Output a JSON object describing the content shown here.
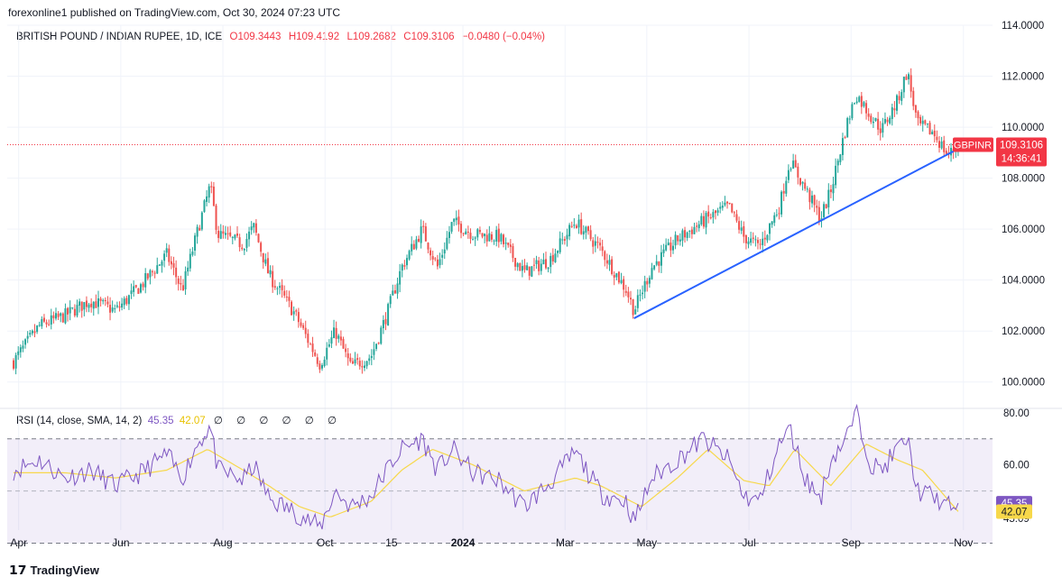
{
  "header": {
    "publisher": "forexonline1 published on TradingView.com, Oct 30, 2024 07:23 UTC"
  },
  "legend": {
    "symbol": "BRITISH POUND / INDIAN RUPEE, 1D, ICE",
    "open": "O109.3443",
    "high": "H109.4192",
    "low": "L109.2682",
    "close": "C109.3106",
    "change": "−0.0480 (−0.04%)"
  },
  "rsi_legend": {
    "label": "RSI (14, close, SMA, 14, 2)",
    "rsi": "45.35",
    "sma": "42.07",
    "icons": "∅ ∅ ∅     ∅ ∅ ∅"
  },
  "price_tag": {
    "symbol": "GBPINR",
    "price": "109.3106",
    "countdown": "14:36:41"
  },
  "rsi_tags": {
    "rsi": "45.35",
    "rsi_prev": "45.09",
    "sma": "42.07"
  },
  "brand": "TradingView",
  "colors": {
    "up": "#26a69a",
    "down": "#ef5350",
    "trendline": "#2962ff",
    "rsi": "#7e57c2",
    "rsi_sma": "#f7d84a",
    "last_price": "#f23645"
  },
  "chart_data": [
    {
      "type": "candlestick",
      "title": "BRITISH POUND / INDIAN RUPEE, 1D, ICE",
      "y_ticks": [
        "114.0000",
        "112.0000",
        "110.0000",
        "108.0000",
        "106.0000",
        "104.0000",
        "102.0000",
        "100.0000"
      ],
      "ylim": [
        99.0,
        114.0
      ],
      "x_ticks": [
        "Apr",
        "Jun",
        "Aug",
        "Oct",
        "15",
        "2024",
        "Mar",
        "May",
        "Jul",
        "Sep",
        "Nov"
      ],
      "anchors": [
        {
          "month": 0.0,
          "close": 100.8
        },
        {
          "month": 0.5,
          "close": 102.2
        },
        {
          "month": 1.0,
          "close": 102.6
        },
        {
          "month": 1.5,
          "close": 103.2
        },
        {
          "month": 2.0,
          "close": 102.8
        },
        {
          "month": 2.5,
          "close": 103.8
        },
        {
          "month": 3.0,
          "close": 105.0
        },
        {
          "month": 3.3,
          "close": 103.6
        },
        {
          "month": 3.6,
          "close": 105.9
        },
        {
          "month": 3.85,
          "close": 107.7
        },
        {
          "month": 4.0,
          "close": 105.8
        },
        {
          "month": 4.5,
          "close": 105.4
        },
        {
          "month": 4.7,
          "close": 106.1
        },
        {
          "month": 5.0,
          "close": 104.2
        },
        {
          "month": 5.5,
          "close": 102.7
        },
        {
          "month": 6.0,
          "close": 100.7
        },
        {
          "month": 6.3,
          "close": 102.0
        },
        {
          "month": 6.6,
          "close": 100.6
        },
        {
          "month": 7.0,
          "close": 101.0
        },
        {
          "month": 7.3,
          "close": 102.6
        },
        {
          "month": 7.6,
          "close": 104.5
        },
        {
          "month": 8.0,
          "close": 106.0
        },
        {
          "month": 8.3,
          "close": 104.5
        },
        {
          "month": 8.6,
          "close": 106.3
        },
        {
          "month": 9.0,
          "close": 105.8
        },
        {
          "month": 9.5,
          "close": 105.7
        },
        {
          "month": 10.0,
          "close": 104.3
        },
        {
          "month": 10.5,
          "close": 104.8
        },
        {
          "month": 11.0,
          "close": 106.3
        },
        {
          "month": 11.5,
          "close": 105.2
        },
        {
          "month": 12.0,
          "close": 103.6
        },
        {
          "month": 12.15,
          "close": 102.8
        },
        {
          "month": 12.5,
          "close": 104.5
        },
        {
          "month": 13.0,
          "close": 105.6
        },
        {
          "month": 13.5,
          "close": 106.3
        },
        {
          "month": 14.0,
          "close": 106.9
        },
        {
          "month": 14.3,
          "close": 105.7
        },
        {
          "month": 14.6,
          "close": 105.3
        },
        {
          "month": 15.0,
          "close": 106.9
        },
        {
          "month": 15.2,
          "close": 108.7
        },
        {
          "month": 15.5,
          "close": 107.6
        },
        {
          "month": 15.8,
          "close": 106.4
        },
        {
          "month": 16.0,
          "close": 107.5
        },
        {
          "month": 16.3,
          "close": 110.0
        },
        {
          "month": 16.5,
          "close": 111.3
        },
        {
          "month": 16.8,
          "close": 110.4
        },
        {
          "month": 17.0,
          "close": 109.9
        },
        {
          "month": 17.3,
          "close": 111.0
        },
        {
          "month": 17.5,
          "close": 112.2
        },
        {
          "month": 17.7,
          "close": 110.1
        },
        {
          "month": 18.0,
          "close": 109.8
        },
        {
          "month": 18.3,
          "close": 108.9
        },
        {
          "month": 18.5,
          "close": 109.31
        }
      ],
      "last_price": 109.3106,
      "trendline": [
        {
          "month": 12.15,
          "price": 102.5
        },
        {
          "month": 18.45,
          "price": 109.1
        }
      ]
    },
    {
      "type": "line",
      "title": "RSI (14, close, SMA, 14, 2)",
      "y_ticks": [
        "80.00",
        "60.00"
      ],
      "ylim": [
        35.0,
        81.0
      ],
      "bands": {
        "upper": 70,
        "middle": 50,
        "lower": 30
      },
      "series": [
        {
          "name": "RSI",
          "anchors": [
            {
              "month": 0.0,
              "value": 58
            },
            {
              "month": 0.5,
              "value": 62
            },
            {
              "month": 1.0,
              "value": 55
            },
            {
              "month": 1.5,
              "value": 58
            },
            {
              "month": 2.0,
              "value": 52
            },
            {
              "month": 2.5,
              "value": 57
            },
            {
              "month": 3.0,
              "value": 64
            },
            {
              "month": 3.3,
              "value": 55
            },
            {
              "month": 3.6,
              "value": 68
            },
            {
              "month": 3.85,
              "value": 75
            },
            {
              "month": 4.0,
              "value": 58
            },
            {
              "month": 4.5,
              "value": 54
            },
            {
              "month": 4.7,
              "value": 60
            },
            {
              "month": 5.0,
              "value": 47
            },
            {
              "month": 5.5,
              "value": 42
            },
            {
              "month": 6.0,
              "value": 36
            },
            {
              "month": 6.3,
              "value": 50
            },
            {
              "month": 6.6,
              "value": 44
            },
            {
              "month": 7.0,
              "value": 48
            },
            {
              "month": 7.3,
              "value": 58
            },
            {
              "month": 7.6,
              "value": 66
            },
            {
              "month": 8.0,
              "value": 70
            },
            {
              "month": 8.3,
              "value": 58
            },
            {
              "month": 8.6,
              "value": 66
            },
            {
              "month": 9.0,
              "value": 57
            },
            {
              "month": 9.5,
              "value": 54
            },
            {
              "month": 10.0,
              "value": 44
            },
            {
              "month": 10.5,
              "value": 53
            },
            {
              "month": 11.0,
              "value": 65
            },
            {
              "month": 11.5,
              "value": 49
            },
            {
              "month": 12.0,
              "value": 46
            },
            {
              "month": 12.15,
              "value": 38
            },
            {
              "month": 12.5,
              "value": 55
            },
            {
              "month": 13.0,
              "value": 62
            },
            {
              "month": 13.5,
              "value": 70
            },
            {
              "month": 14.0,
              "value": 62
            },
            {
              "month": 14.3,
              "value": 48
            },
            {
              "month": 14.6,
              "value": 46
            },
            {
              "month": 15.0,
              "value": 68
            },
            {
              "month": 15.2,
              "value": 74
            },
            {
              "month": 15.5,
              "value": 55
            },
            {
              "month": 15.8,
              "value": 47
            },
            {
              "month": 16.0,
              "value": 62
            },
            {
              "month": 16.3,
              "value": 70
            },
            {
              "month": 16.5,
              "value": 80
            },
            {
              "month": 16.8,
              "value": 60
            },
            {
              "month": 17.0,
              "value": 58
            },
            {
              "month": 17.3,
              "value": 66
            },
            {
              "month": 17.5,
              "value": 70
            },
            {
              "month": 17.7,
              "value": 50
            },
            {
              "month": 18.0,
              "value": 48
            },
            {
              "month": 18.3,
              "value": 44
            },
            {
              "month": 18.5,
              "value": 45.35
            }
          ]
        },
        {
          "name": "SMA",
          "anchors": [
            {
              "month": 0.0,
              "value": 57
            },
            {
              "month": 1.0,
              "value": 57
            },
            {
              "month": 2.0,
              "value": 55
            },
            {
              "month": 3.0,
              "value": 58
            },
            {
              "month": 3.8,
              "value": 66
            },
            {
              "month": 4.5,
              "value": 58
            },
            {
              "month": 5.0,
              "value": 52
            },
            {
              "month": 5.6,
              "value": 44
            },
            {
              "month": 6.2,
              "value": 40
            },
            {
              "month": 7.0,
              "value": 46
            },
            {
              "month": 7.6,
              "value": 58
            },
            {
              "month": 8.2,
              "value": 66
            },
            {
              "month": 9.0,
              "value": 60
            },
            {
              "month": 10.0,
              "value": 50
            },
            {
              "month": 11.0,
              "value": 55
            },
            {
              "month": 11.5,
              "value": 52
            },
            {
              "month": 12.3,
              "value": 44
            },
            {
              "month": 13.0,
              "value": 55
            },
            {
              "month": 13.6,
              "value": 66
            },
            {
              "month": 14.3,
              "value": 54
            },
            {
              "month": 14.8,
              "value": 52
            },
            {
              "month": 15.3,
              "value": 66
            },
            {
              "month": 16.0,
              "value": 52
            },
            {
              "month": 16.7,
              "value": 68
            },
            {
              "month": 17.3,
              "value": 62
            },
            {
              "month": 17.8,
              "value": 58
            },
            {
              "month": 18.5,
              "value": 42.07
            }
          ]
        }
      ]
    }
  ]
}
